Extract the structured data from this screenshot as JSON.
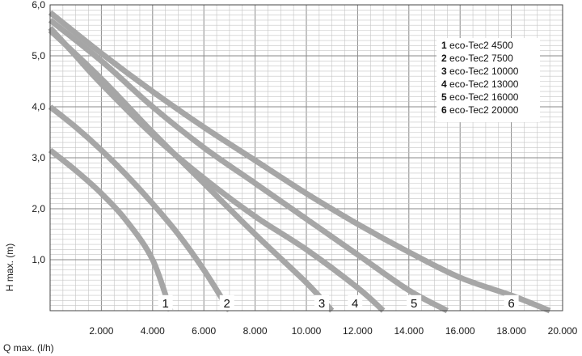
{
  "chart_data": {
    "type": "line",
    "xlabel": "Q max. (l/h)",
    "ylabel": "H max. (m)",
    "xlim": [
      0,
      20000
    ],
    "ylim": [
      0,
      6
    ],
    "grid": true,
    "x_ticks": [
      {
        "value": 2000,
        "label": "2.000"
      },
      {
        "value": 4000,
        "label": "4.000"
      },
      {
        "value": 6000,
        "label": "6.000"
      },
      {
        "value": 8000,
        "label": "8.000"
      },
      {
        "value": 10000,
        "label": "10.000"
      },
      {
        "value": 12000,
        "label": "12.000"
      },
      {
        "value": 14000,
        "label": "14.000"
      },
      {
        "value": 16000,
        "label": "16.000"
      },
      {
        "value": 18000,
        "label": "18.000"
      },
      {
        "value": 20000,
        "label": "20.000"
      }
    ],
    "y_ticks": [
      {
        "value": 1,
        "label": "1,0"
      },
      {
        "value": 2,
        "label": "2,0"
      },
      {
        "value": 3,
        "label": "3,0"
      },
      {
        "value": 4,
        "label": "4,0"
      },
      {
        "value": 5,
        "label": "5,0"
      },
      {
        "value": 6,
        "label": "6,0"
      }
    ],
    "legend_position": "top-right",
    "series": [
      {
        "name": "eco-Tec2 4500",
        "number": "1",
        "color": "#a6a6a6",
        "points": [
          [
            0,
            3.15
          ],
          [
            1000,
            2.75
          ],
          [
            2000,
            2.3
          ],
          [
            3000,
            1.75
          ],
          [
            4000,
            1.0
          ],
          [
            4700,
            0.0
          ]
        ]
      },
      {
        "name": "eco-Tec2 7500",
        "number": "2",
        "color": "#a6a6a6",
        "points": [
          [
            0,
            4.0
          ],
          [
            1000,
            3.6
          ],
          [
            2000,
            3.15
          ],
          [
            3000,
            2.65
          ],
          [
            4000,
            2.1
          ],
          [
            5000,
            1.5
          ],
          [
            6000,
            0.8
          ],
          [
            7000,
            0.0
          ]
        ]
      },
      {
        "name": "eco-Tec2 10000",
        "number": "3",
        "color": "#a6a6a6",
        "points": [
          [
            0,
            5.5
          ],
          [
            2000,
            4.55
          ],
          [
            4000,
            3.5
          ],
          [
            6000,
            2.5
          ],
          [
            8000,
            1.5
          ],
          [
            10000,
            0.55
          ],
          [
            11000,
            0.0
          ]
        ]
      },
      {
        "name": "eco-Tec2 13000",
        "number": "4",
        "color": "#a6a6a6",
        "points": [
          [
            0,
            5.55
          ],
          [
            1000,
            5.0
          ],
          [
            2000,
            4.45
          ],
          [
            4000,
            3.45
          ],
          [
            6000,
            2.6
          ],
          [
            8000,
            1.85
          ],
          [
            10000,
            1.2
          ],
          [
            12000,
            0.45
          ],
          [
            13000,
            0.0
          ]
        ]
      },
      {
        "name": "eco-Tec2 16000",
        "number": "5",
        "color": "#a6a6a6",
        "points": [
          [
            0,
            5.7
          ],
          [
            2000,
            4.9
          ],
          [
            4000,
            4.0
          ],
          [
            6000,
            3.2
          ],
          [
            8000,
            2.5
          ],
          [
            10000,
            1.8
          ],
          [
            12000,
            1.1
          ],
          [
            14000,
            0.4
          ],
          [
            15500,
            0.0
          ]
        ]
      },
      {
        "name": "eco-Tec2 20000",
        "number": "6",
        "color": "#a6a6a6",
        "points": [
          [
            0,
            5.85
          ],
          [
            2000,
            5.05
          ],
          [
            4000,
            4.3
          ],
          [
            6000,
            3.6
          ],
          [
            8000,
            2.95
          ],
          [
            10000,
            2.3
          ],
          [
            12000,
            1.7
          ],
          [
            14000,
            1.15
          ],
          [
            16000,
            0.65
          ],
          [
            18000,
            0.3
          ],
          [
            19500,
            0.0
          ]
        ]
      }
    ],
    "curve_labels": [
      {
        "text": "1",
        "x": 4500,
        "y": 0.13
      },
      {
        "text": "2",
        "x": 6900,
        "y": 0.13
      },
      {
        "text": "3",
        "x": 10600,
        "y": 0.13
      },
      {
        "text": "4",
        "x": 11900,
        "y": 0.13
      },
      {
        "text": "5",
        "x": 14200,
        "y": 0.13
      },
      {
        "text": "6",
        "x": 18000,
        "y": 0.13
      }
    ]
  }
}
